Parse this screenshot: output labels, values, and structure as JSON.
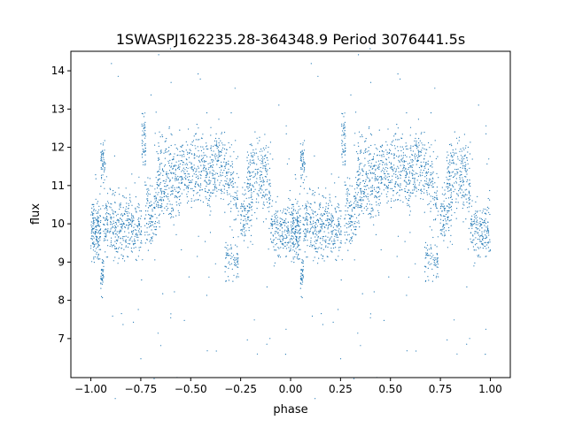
{
  "chart_data": {
    "type": "scatter",
    "title": "1SWASPJ162235.28-364348.9 Period 3076441.5s",
    "xlabel": "phase",
    "ylabel": "flux",
    "xlim": [
      -1.1,
      1.1
    ],
    "ylim": [
      5.98,
      14.51
    ],
    "xticks": [
      -1.0,
      -0.75,
      -0.5,
      -0.25,
      0.0,
      0.25,
      0.5,
      0.75,
      1.0
    ],
    "xtick_labels": [
      "−1.00",
      "−0.75",
      "−0.50",
      "−0.25",
      "0.00",
      "0.25",
      "0.50",
      "0.75",
      "1.00"
    ],
    "yticks": [
      7,
      8,
      9,
      10,
      11,
      12,
      13,
      14
    ],
    "ytick_labels": [
      "7",
      "8",
      "9",
      "10",
      "11",
      "12",
      "13",
      "14"
    ],
    "grid": false,
    "point_color": "#1f77b4",
    "clusters": [
      {
        "phase": [
          0.0,
          0.05
        ],
        "flux": 9.8,
        "spread": 0.35,
        "n": 160
      },
      {
        "phase": [
          0.05,
          0.065
        ],
        "flux": 8.7,
        "spread": 0.25,
        "n": 40
      },
      {
        "phase": [
          0.05,
          0.07
        ],
        "flux": 11.6,
        "spread": 0.3,
        "n": 50
      },
      {
        "phase": [
          0.06,
          0.2
        ],
        "flux": 10.0,
        "spread": 0.4,
        "n": 260
      },
      {
        "phase": [
          0.2,
          0.255
        ],
        "flux": 9.8,
        "spread": 0.35,
        "n": 90
      },
      {
        "phase": [
          0.255,
          0.275
        ],
        "flux": 12.1,
        "spread": 0.35,
        "n": 50
      },
      {
        "phase": [
          0.27,
          0.33
        ],
        "flux": 10.2,
        "spread": 0.5,
        "n": 110
      },
      {
        "phase": [
          0.33,
          0.45
        ],
        "flux": 11.1,
        "spread": 0.55,
        "n": 260
      },
      {
        "phase": [
          0.45,
          0.62
        ],
        "flux": 11.4,
        "spread": 0.5,
        "n": 300
      },
      {
        "phase": [
          0.62,
          0.68
        ],
        "flux": 11.6,
        "spread": 0.5,
        "n": 110
      },
      {
        "phase": [
          0.67,
          0.74
        ],
        "flux": 9.05,
        "spread": 0.25,
        "n": 70
      },
      {
        "phase": [
          0.68,
          0.74
        ],
        "flux": 11.0,
        "spread": 0.5,
        "n": 90
      },
      {
        "phase": [
          0.75,
          0.81
        ],
        "flux": 10.3,
        "spread": 0.35,
        "n": 100
      },
      {
        "phase": [
          0.78,
          0.82
        ],
        "flux": 11.5,
        "spread": 0.4,
        "n": 60
      },
      {
        "phase": [
          0.82,
          0.9
        ],
        "flux": 11.2,
        "spread": 0.5,
        "n": 140
      },
      {
        "phase": [
          0.9,
          1.0
        ],
        "flux": 9.8,
        "spread": 0.35,
        "n": 170
      },
      {
        "phase": [
          0.0,
          1.0
        ],
        "flux": 10.2,
        "spread": 2.0,
        "n": 120
      }
    ]
  }
}
